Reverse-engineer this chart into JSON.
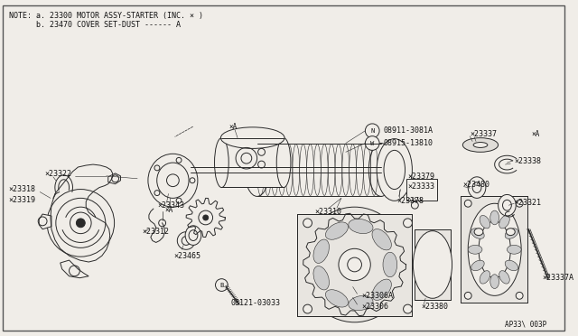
{
  "bg_color": "#f0ede8",
  "border_color": "#333333",
  "line_color": "#2a2a2a",
  "text_color": "#111111",
  "note_line1": "NOTE: a. 23300 MOTOR ASSY-STARTER (INC. × )",
  "note_line2": "      b. 23470 COVER SET-DUST ------ A",
  "figure_code": "AP33\\003P",
  "figsize": [
    6.4,
    3.72
  ],
  "dpi": 100
}
